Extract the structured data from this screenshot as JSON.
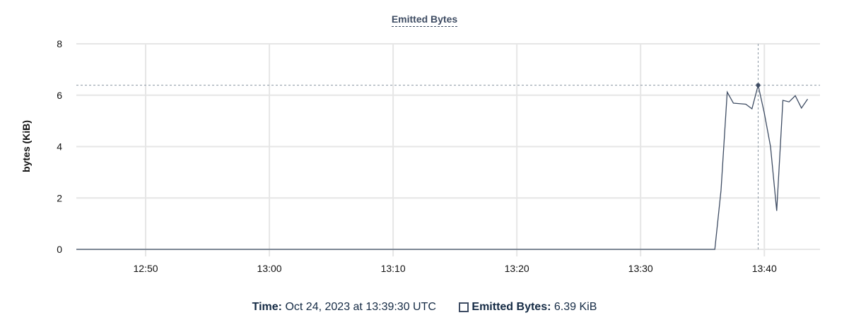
{
  "chart_data": {
    "type": "line",
    "title": "Emitted Bytes",
    "ylabel": "bytes (KiB)",
    "xlabel": "",
    "ylim": [
      0,
      8
    ],
    "yticks": [
      0,
      2,
      4,
      6,
      8
    ],
    "xticks": [
      "12:50",
      "13:00",
      "13:10",
      "13:20",
      "13:30",
      "13:40"
    ],
    "xlim": [
      "12:44:24",
      "13:44:30"
    ],
    "grid": true,
    "color": "#3e4c63",
    "series": [
      {
        "name": "Emitted Bytes",
        "points": [
          [
            "12:44:24",
            0
          ],
          [
            "13:36:00",
            0
          ],
          [
            "13:36:30",
            2.3
          ],
          [
            "13:37:00",
            6.12
          ],
          [
            "13:37:30",
            5.69
          ],
          [
            "13:38:00",
            5.67
          ],
          [
            "13:38:30",
            5.65
          ],
          [
            "13:39:00",
            5.47
          ],
          [
            "13:39:30",
            6.39
          ],
          [
            "13:40:00",
            5.3
          ],
          [
            "13:40:30",
            4.0
          ],
          [
            "13:41:00",
            1.5
          ],
          [
            "13:41:30",
            5.8
          ],
          [
            "13:42:00",
            5.74
          ],
          [
            "13:42:30",
            5.98
          ],
          [
            "13:43:00",
            5.5
          ],
          [
            "13:43:30",
            5.85
          ]
        ]
      }
    ],
    "hover": {
      "time": "13:39:30",
      "value": 6.39
    }
  },
  "legend": {
    "time_label": "Time:",
    "time_value": "Oct 24, 2023 at 13:39:30 UTC",
    "series_label": "Emitted Bytes:",
    "series_value": "6.39 KiB"
  }
}
